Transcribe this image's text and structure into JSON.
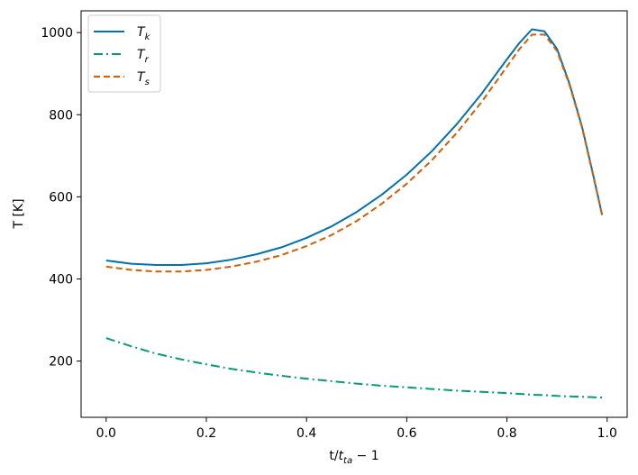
{
  "chart_data": {
    "type": "line",
    "xlabel_main": "t/",
    "xlabel_var": "t",
    "xlabel_sub": "ta",
    "xlabel_suffix": " − 1",
    "ylabel": "T [K]",
    "xlim": [
      -0.05,
      1.04
    ],
    "ylim": [
      63,
      1053
    ],
    "x_ticks": [
      0.0,
      0.2,
      0.4,
      0.6,
      0.8,
      1.0
    ],
    "x_tick_labels": [
      "0.0",
      "0.2",
      "0.4",
      "0.6",
      "0.8",
      "1.0"
    ],
    "y_ticks": [
      200,
      400,
      600,
      800,
      1000
    ],
    "y_tick_labels": [
      "200",
      "400",
      "600",
      "800",
      "1000"
    ],
    "grid": false,
    "legend_position": "top-left",
    "x": [
      0.0,
      0.05,
      0.1,
      0.15,
      0.2,
      0.25,
      0.3,
      0.35,
      0.4,
      0.45,
      0.5,
      0.55,
      0.6,
      0.65,
      0.7,
      0.75,
      0.8,
      0.825,
      0.85,
      0.875,
      0.9,
      0.925,
      0.95,
      0.97,
      0.99
    ],
    "series": [
      {
        "name": "T",
        "sub": "k",
        "color": "#0072b2",
        "dash": "solid",
        "values": [
          445,
          437,
          434,
          434,
          438,
          447,
          460,
          477,
          500,
          528,
          563,
          605,
          654,
          711,
          777,
          852,
          935,
          975,
          1008,
          1003,
          960,
          875,
          770,
          665,
          556
        ]
      },
      {
        "name": "T",
        "sub": "r",
        "color": "#009e73",
        "dash": "dashdot",
        "values": [
          256,
          236,
          218,
          204,
          192,
          181,
          172,
          164,
          157,
          151,
          145,
          140,
          136,
          132,
          128,
          125,
          122,
          120,
          118,
          117,
          115,
          114,
          113,
          112,
          111
        ]
      },
      {
        "name": "T",
        "sub": "s",
        "color": "#d55e00",
        "dash": "dashed",
        "values": [
          430,
          422,
          418,
          418,
          422,
          430,
          442,
          458,
          480,
          507,
          541,
          583,
          632,
          689,
          756,
          832,
          917,
          960,
          995,
          995,
          955,
          872,
          768,
          663,
          555
        ]
      }
    ]
  }
}
